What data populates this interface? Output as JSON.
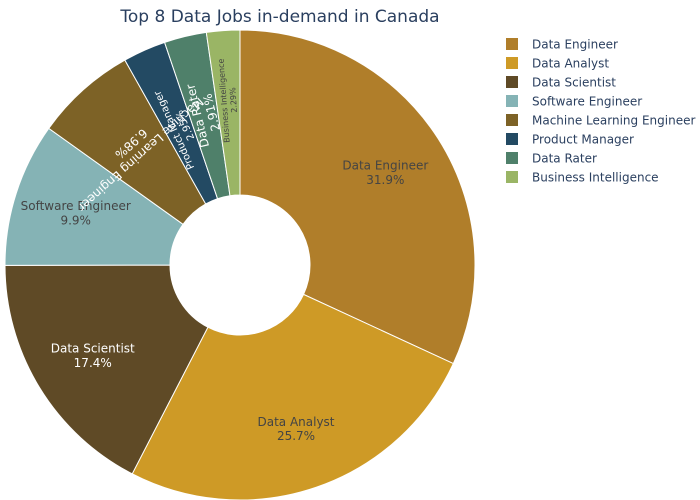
{
  "chart_data": {
    "type": "pie",
    "hole": true,
    "title": "Top 8 Data Jobs in-demand in Canada",
    "legend_placement": "top-right",
    "slices": [
      {
        "label": "Data Engineer",
        "value": 31.9,
        "percent_text": "31.9%",
        "color": "#B07E2A",
        "text_color": "#444444"
      },
      {
        "label": "Data Analyst",
        "value": 25.7,
        "percent_text": "25.7%",
        "color": "#CE9A26",
        "text_color": "#444444"
      },
      {
        "label": "Data Scientist",
        "value": 17.4,
        "percent_text": "17.4%",
        "color": "#5F4A26",
        "text_color": "#ffffff"
      },
      {
        "label": "Software Engineer",
        "value": 9.9,
        "percent_text": "9.9%",
        "color": "#85B3B5",
        "text_color": "#444444"
      },
      {
        "label": "Machine Learning Engineer",
        "value": 6.98,
        "percent_text": "6.98%",
        "color": "#7D6226",
        "text_color": "#ffffff"
      },
      {
        "label": "Product Manager",
        "value": 2.95,
        "percent_text": "2.95%",
        "color": "#234A63",
        "text_color": "#ffffff"
      },
      {
        "label": "Data Rater",
        "value": 2.91,
        "percent_text": "2.91%",
        "color": "#4F806A",
        "text_color": "#ffffff"
      },
      {
        "label": "Business Intelligence",
        "value": 2.29,
        "percent_text": "2.29%",
        "color": "#9AB565",
        "text_color": "#444444"
      }
    ]
  }
}
